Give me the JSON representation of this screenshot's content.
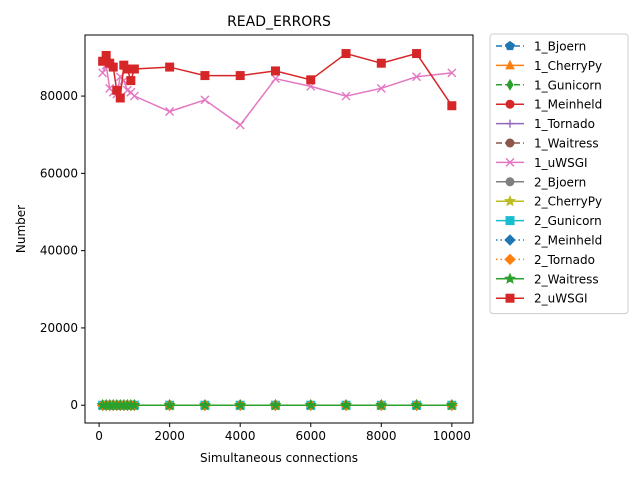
{
  "chart_data": {
    "type": "line",
    "title": "READ_ERRORS",
    "xlabel": "Simultaneous connections",
    "ylabel": "Number",
    "xlim": [
      -400,
      10600
    ],
    "ylim": [
      -4600,
      95800
    ],
    "xticks": [
      0,
      2000,
      4000,
      6000,
      8000,
      10000
    ],
    "yticks": [
      0,
      20000,
      40000,
      60000,
      80000
    ],
    "grid": false,
    "legend_position": "outside-right",
    "series": [
      {
        "name": "1_Bjoern",
        "color": "#1f77b4",
        "marker": "pentagon",
        "dash": "6,3",
        "x": [
          100,
          200,
          300,
          400,
          500,
          600,
          700,
          800,
          900,
          1000,
          2000,
          3000,
          4000,
          5000,
          6000,
          7000,
          8000,
          9000,
          10000
        ],
        "y": [
          0,
          0,
          0,
          0,
          0,
          0,
          0,
          0,
          0,
          0,
          0,
          0,
          0,
          0,
          0,
          0,
          0,
          0,
          0
        ]
      },
      {
        "name": "1_CherryPy",
        "color": "#ff7f0e",
        "marker": "triangle",
        "dash": "",
        "x": [
          100,
          200,
          300,
          400,
          500,
          600,
          700,
          800,
          900,
          1000,
          2000,
          3000,
          4000,
          5000,
          6000,
          7000,
          8000,
          9000,
          10000
        ],
        "y": [
          0,
          0,
          0,
          0,
          0,
          0,
          0,
          0,
          0,
          0,
          0,
          0,
          0,
          0,
          0,
          0,
          0,
          0,
          0
        ]
      },
      {
        "name": "1_Gunicorn",
        "color": "#2ca02c",
        "marker": "thin-diamond",
        "dash": "6,3",
        "x": [
          100,
          200,
          300,
          400,
          500,
          600,
          700,
          800,
          900,
          1000,
          2000,
          3000,
          4000,
          5000,
          6000,
          7000,
          8000,
          9000,
          10000
        ],
        "y": [
          0,
          0,
          0,
          0,
          0,
          0,
          0,
          0,
          0,
          0,
          0,
          0,
          0,
          0,
          0,
          0,
          0,
          0,
          0
        ]
      },
      {
        "name": "1_Meinheld",
        "color": "#d62728",
        "marker": "circle",
        "dash": "",
        "x": [
          100,
          200,
          300,
          400,
          500,
          600,
          700,
          800,
          900,
          1000,
          2000,
          3000,
          4000,
          5000,
          6000,
          7000,
          8000,
          9000,
          10000
        ],
        "y": [
          0,
          0,
          0,
          0,
          0,
          0,
          0,
          0,
          0,
          0,
          0,
          0,
          0,
          0,
          0,
          0,
          0,
          0,
          0
        ]
      },
      {
        "name": "1_Tornado",
        "color": "#9467bd",
        "marker": "plus",
        "dash": "",
        "x": [
          100,
          200,
          300,
          400,
          500,
          600,
          700,
          800,
          900,
          1000,
          2000,
          3000,
          4000,
          5000,
          6000,
          7000,
          8000,
          9000,
          10000
        ],
        "y": [
          0,
          0,
          0,
          0,
          0,
          0,
          0,
          0,
          0,
          0,
          0,
          0,
          0,
          0,
          0,
          0,
          0,
          0,
          0
        ]
      },
      {
        "name": "1_Waitress",
        "color": "#8c564b",
        "marker": "circle",
        "dash": "6,3",
        "x": [
          100,
          200,
          300,
          400,
          500,
          600,
          700,
          800,
          900,
          1000,
          2000,
          3000,
          4000,
          5000,
          6000,
          7000,
          8000,
          9000,
          10000
        ],
        "y": [
          0,
          0,
          0,
          0,
          0,
          0,
          0,
          0,
          0,
          0,
          0,
          0,
          0,
          0,
          0,
          0,
          0,
          0,
          0
        ]
      },
      {
        "name": "1_uWSGI",
        "color": "#e377c2",
        "marker": "x",
        "dash": "",
        "x": [
          100,
          200,
          300,
          400,
          500,
          600,
          700,
          800,
          900,
          1000,
          2000,
          3000,
          4000,
          5000,
          6000,
          7000,
          8000,
          9000,
          10000
        ],
        "y": [
          86000,
          88000,
          82000,
          81000,
          80500,
          85000,
          84000,
          81500,
          81000,
          80000,
          76000,
          79000,
          72500,
          84500,
          82500,
          80000,
          82000,
          85000,
          86000
        ]
      },
      {
        "name": "2_Bjoern",
        "color": "#7f7f7f",
        "marker": "circle",
        "dash": "",
        "x": [
          100,
          200,
          300,
          400,
          500,
          600,
          700,
          800,
          900,
          1000,
          2000,
          3000,
          4000,
          5000,
          6000,
          7000,
          8000,
          9000,
          10000
        ],
        "y": [
          0,
          0,
          0,
          0,
          0,
          0,
          0,
          0,
          0,
          0,
          0,
          0,
          0,
          0,
          0,
          0,
          0,
          0,
          0
        ]
      },
      {
        "name": "2_CherryPy",
        "color": "#bcbd22",
        "marker": "star",
        "dash": "",
        "x": [
          100,
          200,
          300,
          400,
          500,
          600,
          700,
          800,
          900,
          1000,
          2000,
          3000,
          4000,
          5000,
          6000,
          7000,
          8000,
          9000,
          10000
        ],
        "y": [
          0,
          0,
          0,
          0,
          0,
          0,
          0,
          0,
          0,
          0,
          0,
          0,
          0,
          0,
          0,
          0,
          0,
          0,
          0
        ]
      },
      {
        "name": "2_Gunicorn",
        "color": "#17becf",
        "marker": "square",
        "dash": "",
        "x": [
          100,
          200,
          300,
          400,
          500,
          600,
          700,
          800,
          900,
          1000,
          2000,
          3000,
          4000,
          5000,
          6000,
          7000,
          8000,
          9000,
          10000
        ],
        "y": [
          0,
          0,
          0,
          0,
          0,
          0,
          0,
          0,
          0,
          0,
          0,
          0,
          0,
          0,
          0,
          0,
          0,
          0,
          0
        ]
      },
      {
        "name": "2_Meinheld",
        "color": "#1f77b4",
        "marker": "diamond",
        "dash": "1.5,3",
        "x": [
          100,
          200,
          300,
          400,
          500,
          600,
          700,
          800,
          900,
          1000,
          2000,
          3000,
          4000,
          5000,
          6000,
          7000,
          8000,
          9000,
          10000
        ],
        "y": [
          0,
          0,
          0,
          0,
          0,
          0,
          0,
          0,
          0,
          0,
          0,
          0,
          0,
          0,
          0,
          0,
          0,
          0,
          0
        ]
      },
      {
        "name": "2_Tornado",
        "color": "#ff7f0e",
        "marker": "diamond",
        "dash": "1.5,3",
        "x": [
          100,
          200,
          300,
          400,
          500,
          600,
          700,
          800,
          900,
          1000,
          2000,
          3000,
          4000,
          5000,
          6000,
          7000,
          8000,
          9000,
          10000
        ],
        "y": [
          0,
          0,
          0,
          0,
          0,
          0,
          0,
          0,
          0,
          0,
          0,
          0,
          0,
          0,
          0,
          0,
          0,
          0,
          0
        ]
      },
      {
        "name": "2_Waitress",
        "color": "#2ca02c",
        "marker": "star",
        "dash": "",
        "x": [
          100,
          200,
          300,
          400,
          500,
          600,
          700,
          800,
          900,
          1000,
          2000,
          3000,
          4000,
          5000,
          6000,
          7000,
          8000,
          9000,
          10000
        ],
        "y": [
          0,
          0,
          0,
          0,
          0,
          0,
          0,
          0,
          0,
          0,
          0,
          0,
          0,
          0,
          0,
          0,
          0,
          0,
          0
        ]
      },
      {
        "name": "2_uWSGI",
        "color": "#d62728",
        "marker": "square",
        "dash": "",
        "x": [
          100,
          200,
          300,
          400,
          500,
          600,
          700,
          800,
          900,
          1000,
          2000,
          3000,
          4000,
          5000,
          6000,
          7000,
          8000,
          9000,
          10000
        ],
        "y": [
          89000,
          90500,
          88500,
          87500,
          81500,
          79500,
          88000,
          87000,
          84000,
          87000,
          87500,
          85300,
          85300,
          86500,
          84200,
          91000,
          88500,
          91000,
          77500
        ]
      }
    ]
  }
}
